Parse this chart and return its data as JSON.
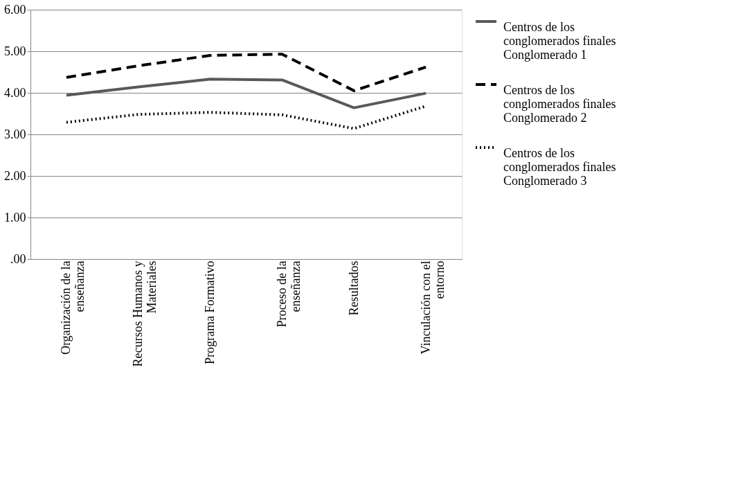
{
  "chart_data": {
    "type": "line",
    "categories": [
      "Organización de la enseñanza",
      "Recursos Humanos y Materiales",
      "Programa Formativo",
      "Proceso de la enseñanza",
      "Resultados",
      "Vinculación con el entorno"
    ],
    "series": [
      {
        "name": "Centros de los conglomerados finales Conglomerado 1",
        "color": "#595959",
        "line_style": "solid",
        "values": [
          3.94,
          4.14,
          4.33,
          4.31,
          3.64,
          3.99
        ]
      },
      {
        "name": "Centros de los conglomerados finales Conglomerado 2",
        "color": "#000000",
        "line_style": "dashed",
        "values": [
          4.37,
          4.65,
          4.9,
          4.93,
          4.05,
          4.62
        ]
      },
      {
        "name": "Centros de los conglomerados finales Conglomerado 3",
        "color": "#000000",
        "line_style": "dotted",
        "values": [
          3.29,
          3.48,
          3.53,
          3.47,
          3.14,
          3.68
        ]
      }
    ],
    "ylim": [
      0,
      6
    ],
    "yticks": [
      {
        "value": 0,
        "label": ".00"
      },
      {
        "value": 1,
        "label": "1.00"
      },
      {
        "value": 2,
        "label": "2.00"
      },
      {
        "value": 3,
        "label": "3.00"
      },
      {
        "value": 4,
        "label": "4.00"
      },
      {
        "value": 5,
        "label": "5.00"
      },
      {
        "value": 6,
        "label": "6.00"
      }
    ],
    "grid": "y",
    "legend": "right",
    "marker": "none"
  }
}
